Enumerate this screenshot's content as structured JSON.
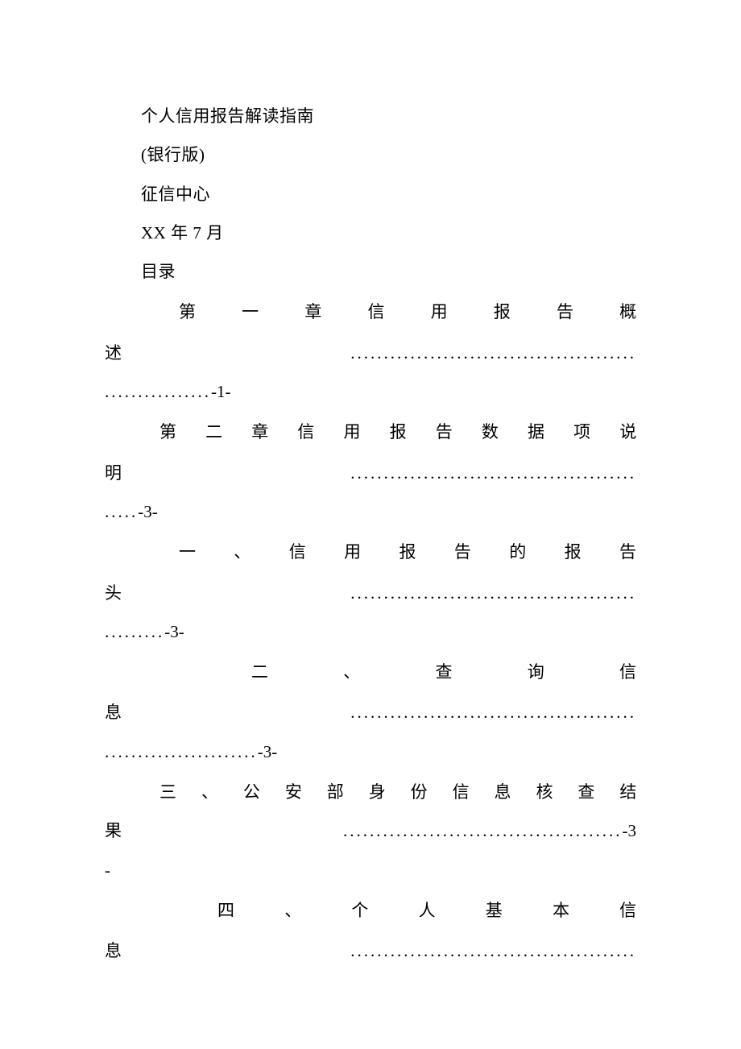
{
  "document": {
    "title": "个人信用报告解读指南",
    "edition": "(银行版)",
    "publisher": "征信中心",
    "date": "XX 年 7 月",
    "toc_heading": "目录",
    "background_color": "#ffffff",
    "text_color": "#000000",
    "font_family": "SimSun",
    "base_fontsize": 21,
    "line_height": 2.3
  },
  "toc": {
    "entries": [
      {
        "text_line1": "第一章信用报告概",
        "text_line2": "述",
        "page": "-1-",
        "dots1": "...........................................",
        "dots2": "................",
        "indent": 92
      },
      {
        "text_line1": "第二章信用报告数据项说",
        "text_line2": "明",
        "page": "-3-",
        "dots1": "...........................................",
        "dots2": ".....",
        "indent": 68
      },
      {
        "text_line1": "一、信用报告的报告",
        "text_line2": "头",
        "page": "-3-",
        "dots1": "...........................................",
        "dots2": ".........",
        "indent": 92
      },
      {
        "text_line1": "二、查询信",
        "text_line2": "息",
        "page": "-3-",
        "dots1": "...........................................",
        "dots2": ".......................",
        "indent": 182
      },
      {
        "text_line1": "三、公安部身份信息核查结",
        "text_line2": "果",
        "page": "-3",
        "text_line3": "-",
        "dots1": "..........................................",
        "indent": 68
      },
      {
        "text_line1": "四、个人基本信",
        "text_line2": "息",
        "page": "",
        "dots1": "...........................................",
        "indent": 140
      }
    ]
  }
}
